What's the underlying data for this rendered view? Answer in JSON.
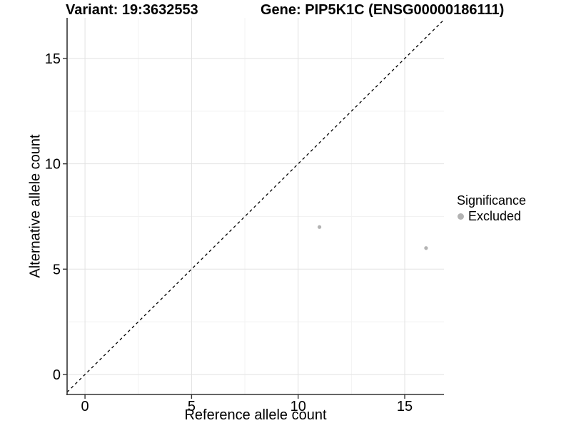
{
  "figure": {
    "title_left": "Variant: 19:3632553",
    "title_right": "Gene: PIP5K1C (ENSG00000186111)"
  },
  "chart_data": {
    "type": "scatter",
    "title_left": "Variant: 19:3632553",
    "title_right": "Gene: PIP5K1C (ENSG00000186111)",
    "xlabel": "Reference allele count",
    "ylabel": "Alternative allele count",
    "xticks": [
      0,
      5,
      10,
      15
    ],
    "yticks": [
      0,
      5,
      10,
      15
    ],
    "xlim": [
      -0.84,
      16.84
    ],
    "ylim": [
      -0.95,
      16.93
    ],
    "grid": {
      "major": true,
      "minor": true
    },
    "series": [
      {
        "name": "Excluded",
        "color": "#b3b3b3",
        "points": [
          {
            "x": 11,
            "y": 7
          },
          {
            "x": 16,
            "y": 6
          }
        ]
      }
    ],
    "reference_line": {
      "style": "dashed",
      "slope": 1,
      "intercept": 0,
      "color": "#000000"
    },
    "legend": {
      "title": "Significance",
      "position": "right",
      "entries": [
        {
          "label": "Excluded",
          "color": "#b3b3b3"
        }
      ]
    }
  },
  "colors": {
    "background": "#ffffff",
    "grid_major": "#e2e2e2",
    "grid_minor": "#f2f2f2",
    "axis": "#333333",
    "point": "#b3b3b3",
    "text": "#000000"
  }
}
